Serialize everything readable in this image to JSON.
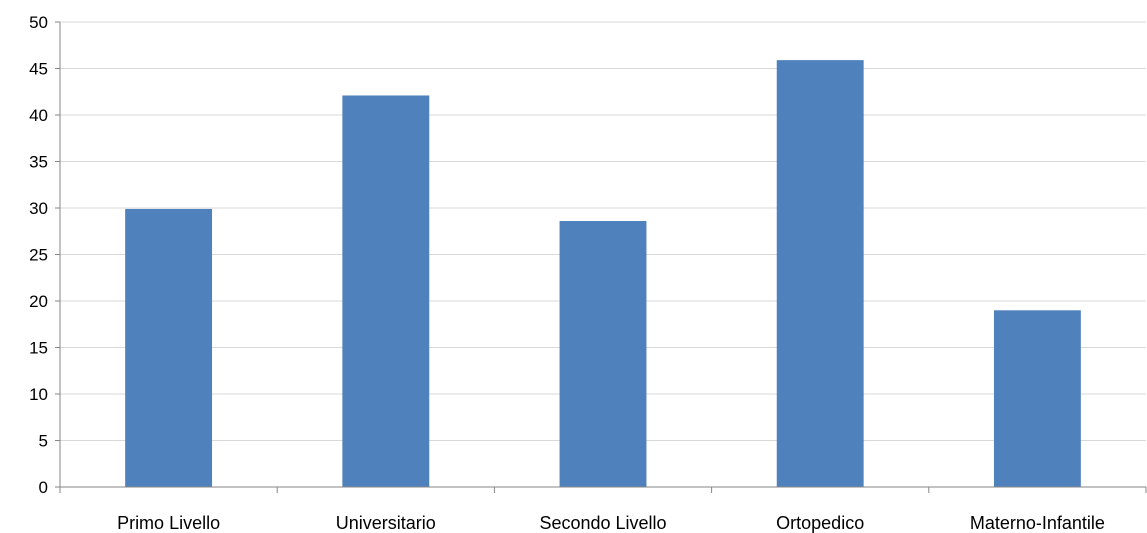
{
  "chart_data": {
    "type": "bar",
    "categories": [
      "Primo Livello",
      "Universitario",
      "Secondo Livello",
      "Ortopedico",
      "Materno-Infantile"
    ],
    "values": [
      29.9,
      42.1,
      28.6,
      45.9,
      19.0
    ],
    "title": "",
    "xlabel": "",
    "ylabel": "",
    "ylim": [
      0,
      50
    ],
    "yticks": [
      "0",
      "5",
      "10",
      "15",
      "20",
      "25",
      "30",
      "35",
      "40",
      "45",
      "50"
    ],
    "grid": true,
    "legend": "none",
    "colors": {
      "bar": "#4F81BD",
      "grid": "#D9D9D9",
      "axis": "#868686"
    }
  }
}
